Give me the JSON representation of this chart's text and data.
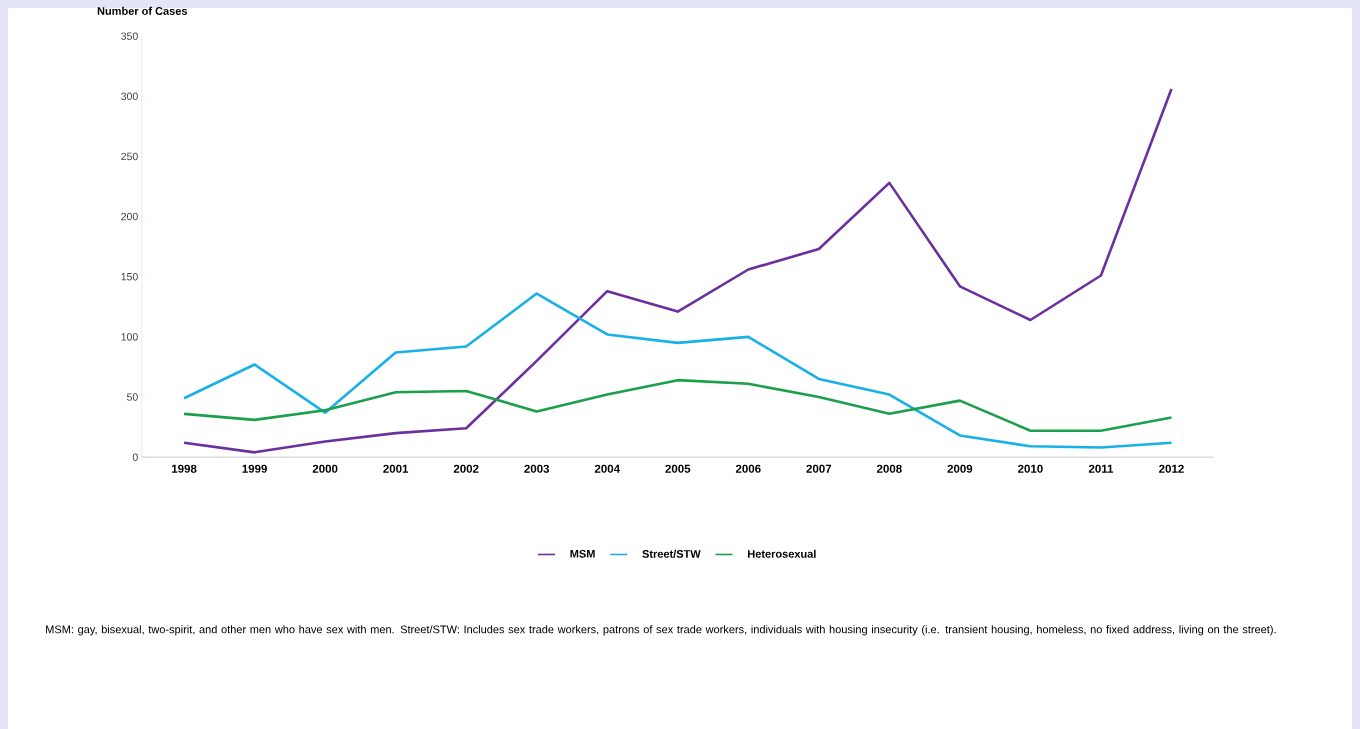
{
  "chart_data": {
    "type": "line",
    "ylabel": "Number of Cases",
    "categories": [
      "1998",
      "1999",
      "2000",
      "2001",
      "2002",
      "2003",
      "2004",
      "2005",
      "2006",
      "2007",
      "2008",
      "2009",
      "2010",
      "2011",
      "2012"
    ],
    "series": [
      {
        "name": "MSM",
        "color": "#6b2f9e",
        "values": [
          12,
          4,
          13,
          20,
          24,
          80,
          138,
          121,
          156,
          173,
          228,
          142,
          114,
          151,
          306
        ]
      },
      {
        "name": "Street/STW",
        "color": "#18b0e8",
        "values": [
          49,
          77,
          37,
          87,
          92,
          136,
          102,
          95,
          100,
          65,
          52,
          18,
          9,
          8,
          12
        ]
      },
      {
        "name": "Heterosexual",
        "color": "#1aa04a",
        "values": [
          36,
          31,
          39,
          54,
          55,
          38,
          52,
          64,
          61,
          50,
          36,
          47,
          22,
          22,
          33
        ]
      }
    ],
    "ylim": [
      0,
      350
    ],
    "yticks": [
      0,
      50,
      100,
      150,
      200,
      250,
      300,
      350
    ],
    "legend": "bottom",
    "marker": "none",
    "line_style": "solid",
    "annotations": [
      "MSM: gay, bisexual, two-spirit, and other men who have sex with men.  Street/STW: Includes sex trade workers, patrons of sex trade workers, individuals with housing insecurity (i.e. transient housing, homeless, no fixed address, living on the street)."
    ]
  }
}
